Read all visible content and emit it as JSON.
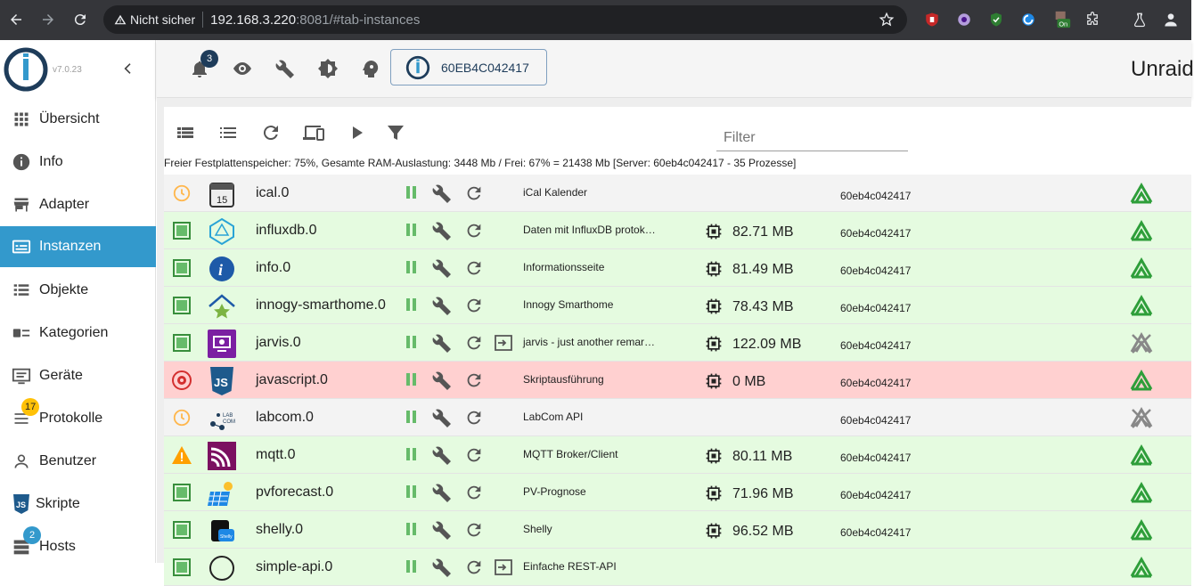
{
  "browser": {
    "insecure_label": "Nicht sicher",
    "url_host": "192.168.3.220",
    "url_rest": ":8081/#tab-instances"
  },
  "sidebar": {
    "version": "v7.0.23",
    "items": [
      {
        "label": "Übersicht",
        "icon": "apps-icon"
      },
      {
        "label": "Info",
        "icon": "info-icon"
      },
      {
        "label": "Adapter",
        "icon": "store-icon"
      },
      {
        "label": "Instanzen",
        "icon": "instances-icon",
        "active": true
      },
      {
        "label": "Objekte",
        "icon": "objects-list-icon"
      },
      {
        "label": "Kategorien",
        "icon": "categories-icon"
      },
      {
        "label": "Geräte",
        "icon": "devices-icon"
      },
      {
        "label": "Protokolle",
        "icon": "logs-icon",
        "badge": "17"
      },
      {
        "label": "Benutzer",
        "icon": "user-icon"
      },
      {
        "label": "Skripte",
        "icon": "js-icon"
      },
      {
        "label": "Hosts",
        "icon": "hosts-icon",
        "badge": "2"
      }
    ]
  },
  "header": {
    "notifications_count": "3",
    "host_button": "60EB4C042417",
    "title": "Unraid"
  },
  "toolbar": {
    "filter_placeholder": "Filter",
    "status_text": "Freier Festplattenspeicher: 75%, Gesamte RAM-Auslastung: 3448 Mb / Frei: 67% = 21438 Mb [Server: 60eb4c042417 - 35 Prozesse]"
  },
  "instances": [
    {
      "name": "ical.0",
      "title": "iCal Kalender",
      "memory": "",
      "host": "60eb4c042417",
      "status": "schedule",
      "bg": "gray",
      "link": false,
      "connected": true
    },
    {
      "name": "influxdb.0",
      "title": "Daten mit InfluxDB protok…",
      "memory": "82.71 MB",
      "host": "60eb4c042417",
      "status": "running",
      "bg": "green",
      "link": false,
      "connected": true
    },
    {
      "name": "info.0",
      "title": "Informationsseite",
      "memory": "81.49 MB",
      "host": "60eb4c042417",
      "status": "running",
      "bg": "green",
      "link": false,
      "connected": true
    },
    {
      "name": "innogy-smarthome.0",
      "title": "Innogy Smarthome",
      "memory": "78.43 MB",
      "host": "60eb4c042417",
      "status": "running",
      "bg": "green",
      "link": false,
      "connected": true
    },
    {
      "name": "jarvis.0",
      "title": "jarvis - just another remar…",
      "memory": "122.09 MB",
      "host": "60eb4c042417",
      "status": "running",
      "bg": "green",
      "link": true,
      "connected": false
    },
    {
      "name": "javascript.0",
      "title": "Skriptausführung",
      "memory": "0 MB",
      "host": "60eb4c042417",
      "status": "error",
      "bg": "red",
      "link": false,
      "connected": true
    },
    {
      "name": "labcom.0",
      "title": "LabCom API",
      "memory": "",
      "host": "60eb4c042417",
      "status": "schedule",
      "bg": "gray",
      "link": false,
      "connected": false
    },
    {
      "name": "mqtt.0",
      "title": "MQTT Broker/Client",
      "memory": "80.11 MB",
      "host": "60eb4c042417",
      "status": "warning",
      "bg": "green",
      "link": false,
      "connected": true
    },
    {
      "name": "pvforecast.0",
      "title": "PV-Prognose",
      "memory": "71.96 MB",
      "host": "60eb4c042417",
      "status": "running",
      "bg": "green",
      "link": false,
      "connected": true
    },
    {
      "name": "shelly.0",
      "title": "Shelly",
      "memory": "96.52 MB",
      "host": "60eb4c042417",
      "status": "running",
      "bg": "green",
      "link": false,
      "connected": true
    },
    {
      "name": "simple-api.0",
      "title": "Einfache REST-API",
      "memory": "",
      "host": "",
      "status": "running",
      "bg": "green",
      "link": true,
      "connected": true
    }
  ],
  "colors": {
    "accent": "#3399cc",
    "running_bg": "#e5fbe0",
    "error_bg": "#ffd0d0",
    "connected": "#2e9e3a"
  }
}
